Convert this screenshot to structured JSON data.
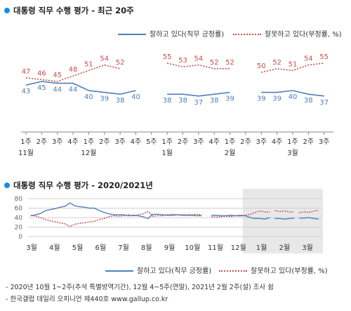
{
  "chart_data": [
    {
      "type": "line",
      "title": "대통령 직무 수행 평가 - 최근 20주",
      "legend": {
        "positive": "잘하고 있다(직무 긍정률)",
        "negative": "잘못하고 있다(부정률, %)"
      },
      "weeks": [
        "1주",
        "2주",
        "3주",
        "4주",
        "1주",
        "2주",
        "3주",
        "4주",
        "5주",
        "1주",
        "2주",
        "3주",
        "4주",
        "1주",
        "2주",
        "3주",
        "4주",
        "1주",
        "2주",
        "3주"
      ],
      "months": [
        {
          "label": "11월",
          "index": 0
        },
        {
          "label": "12월",
          "index": 4
        },
        {
          "label": "1월",
          "index": 9
        },
        {
          "label": "2월",
          "index": 13
        },
        {
          "label": "3월",
          "index": 17
        }
      ],
      "segments": [
        [
          0,
          7
        ],
        [
          9,
          13
        ],
        [
          15,
          19
        ]
      ],
      "series": [
        {
          "name": "잘하고 있다(직무 긍정률)",
          "color": "#4f7fb8",
          "style": "solid",
          "values": [
            43,
            45,
            44,
            44,
            40,
            39,
            38,
            40,
            null,
            38,
            38,
            37,
            38,
            39,
            null,
            39,
            39,
            40,
            38,
            37
          ]
        },
        {
          "name": "잘못하고 있다(부정률, %)",
          "color": "#c0504d",
          "style": "dotted",
          "values": [
            47,
            46,
            45,
            48,
            51,
            54,
            52,
            null,
            null,
            55,
            53,
            54,
            52,
            52,
            null,
            50,
            52,
            51,
            54,
            55
          ]
        }
      ]
    },
    {
      "type": "line",
      "title": "대통령 직무 수행 평가 - 2020/2021년",
      "ylim": [
        0,
        80
      ],
      "yticks": [
        0,
        20,
        40,
        60,
        80
      ],
      "months": [
        "3월",
        "4월",
        "5월",
        "6월",
        "7월",
        "8월",
        "9월",
        "10월",
        "11월",
        "12월",
        "1월",
        "2월",
        "3월"
      ],
      "legend": {
        "positive": "잘하고 있다(직무 긍정률)",
        "negative": "잘못하고 있다(부정률, %)"
      },
      "x_weeks": [
        0,
        1,
        2,
        3,
        4,
        5,
        6,
        7,
        8,
        9,
        10,
        11,
        12,
        13,
        14,
        15,
        16,
        17,
        18,
        19,
        20,
        21,
        22,
        23,
        24,
        25,
        26,
        27,
        28,
        29,
        30,
        31,
        32,
        33,
        34,
        35,
        37,
        38,
        39,
        40,
        41,
        42,
        43,
        44,
        45,
        46,
        47,
        48,
        49,
        50,
        51,
        52,
        53,
        54,
        55,
        56
      ],
      "series": [
        {
          "name": "잘하고 있다(직무 긍정률)",
          "color": "#4f7fb8",
          "segments": [
            {
              "x": [
                0,
                1,
                2,
                3,
                4,
                5,
                6,
                7,
                8,
                9,
                10,
                11,
                12,
                13,
                14,
                15,
                16,
                17,
                18,
                19,
                20,
                21,
                22,
                23,
                24,
                25,
                26,
                27,
                28,
                29,
                30,
                31,
                32,
                33,
                34,
                35
              ],
              "y": [
                44,
                46,
                49,
                55,
                57,
                59,
                62,
                64,
                71,
                65,
                63,
                62,
                60,
                60,
                55,
                51,
                48,
                46,
                46,
                46,
                44,
                45,
                44,
                42,
                38,
                47,
                47,
                46,
                45,
                45,
                46,
                45,
                45,
                45,
                44,
                44
              ]
            },
            {
              "x": [
                37,
                38,
                39,
                40,
                41,
                42,
                43,
                44,
                45,
                46,
                47,
                48,
                49
              ],
              "y": [
                45,
                45,
                44,
                44,
                45,
                44,
                45,
                44,
                40,
                38,
                38,
                37,
                40
              ]
            },
            {
              "x": [
                50,
                51,
                52,
                53,
                54
              ],
              "y": [
                38,
                38,
                37,
                38,
                39
              ]
            },
            {
              "x": [
                55,
                56,
                57,
                58,
                59
              ],
              "y": [
                39,
                39,
                40,
                38,
                37
              ]
            }
          ]
        },
        {
          "name": "잘못하고 있다(부정률, %)",
          "color": "#c0504d",
          "segments": [
            {
              "x": [
                0,
                1,
                2,
                3,
                4,
                5,
                6,
                7,
                8,
                9,
                10,
                11,
                12,
                13,
                14,
                15,
                16,
                17,
                18,
                19,
                20,
                21,
                22,
                23,
                24,
                25,
                26,
                27,
                28,
                29,
                30,
                31,
                32,
                33,
                34,
                35
              ],
              "y": [
                45,
                43,
                40,
                36,
                33,
                31,
                29,
                27,
                21,
                26,
                28,
                29,
                31,
                32,
                36,
                38,
                42,
                44,
                43,
                44,
                46,
                44,
                46,
                48,
                53,
                43,
                44,
                44,
                46,
                47,
                46,
                46,
                46,
                46,
                47,
                46
              ]
            },
            {
              "x": [
                37,
                38,
                39,
                40,
                41,
                42,
                43,
                44,
                45,
                46,
                47,
                48,
                49
              ],
              "y": [
                42,
                41,
                42,
                43,
                42,
                44,
                43,
                45,
                47,
                51,
                54,
                52,
                52
              ]
            },
            {
              "x": [
                50,
                51,
                52,
                53,
                54
              ],
              "y": [
                55,
                53,
                54,
                52,
                52
              ]
            },
            {
              "x": [
                55,
                56,
                57,
                58,
                59
              ],
              "y": [
                50,
                52,
                51,
                54,
                55
              ]
            }
          ]
        }
      ],
      "shaded_from": 44
    }
  ],
  "notes": [
    "- 2020년 10월 1~2주(추석 특별방역기간), 12월 4~5주(연말), 2021년 2월 2주(설) 조사 쉼",
    "- 한국갤럽 데일리 오피니언 제440호 www.gallup.co.kr"
  ]
}
